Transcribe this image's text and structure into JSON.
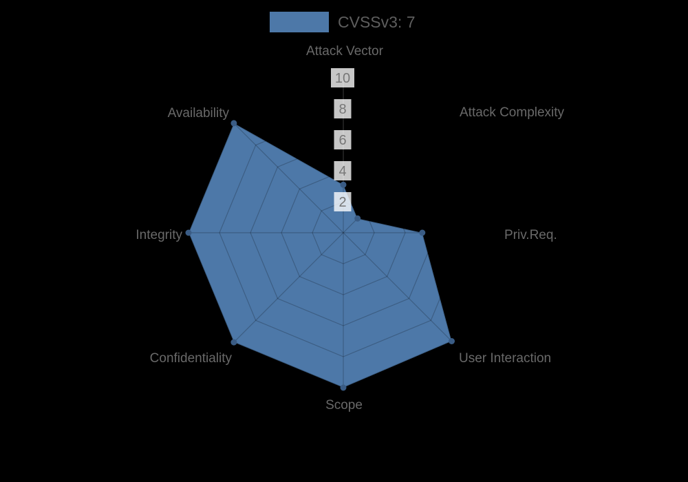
{
  "legend": {
    "label": "CVSSv3: 7",
    "swatch_color": "#4d78a8"
  },
  "chart_data": {
    "type": "radar",
    "title": "",
    "categories": [
      "Attack Vector",
      "Attack Complexity",
      "Priv.Req.",
      "User Interaction",
      "Scope",
      "Confidentiality",
      "Integrity",
      "Availability"
    ],
    "series": [
      {
        "name": "CVSSv3: 7",
        "values": [
          3.1,
          1.3,
          5.1,
          9.9,
          10,
          10,
          10,
          10
        ]
      }
    ],
    "rmin": 0,
    "rmax": 10,
    "ticks": [
      2,
      4,
      6,
      8,
      10
    ],
    "grid_shape": "polygon",
    "grid_on": true,
    "legend_position": "top",
    "colors": {
      "fill": "#4d78a8",
      "edge": "rgba(0,0,0,0.18)",
      "point": "#3a5c85",
      "grid_line": "rgba(0,0,0,0.22)",
      "axis_line": "rgba(255,255,255,0.3)",
      "tick_text": "#777777",
      "tick_backdrop": "rgba(255,255,255,0.78)",
      "category_label": "#696969",
      "background": "#000000"
    }
  }
}
